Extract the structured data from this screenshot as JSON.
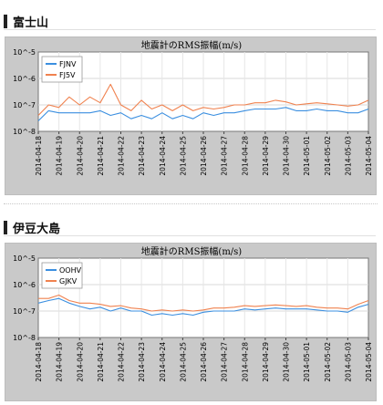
{
  "stations": [
    {
      "name": "富士山",
      "chart_data": {
        "type": "line",
        "title": "地震計のRMS振幅(m/s)",
        "xlabel": "",
        "ylabel": "",
        "yscale": "log",
        "ylim": [
          "10^-8",
          "10^-5"
        ],
        "ytick_labels": [
          "10^-5",
          "10^-6",
          "10^-7",
          "10^-8"
        ],
        "x_tick_labels": [
          "2014-04-18",
          "2014-04-19",
          "2014-04-20",
          "2014-04-21",
          "2014-04-22",
          "2014-04-23",
          "2014-04-24",
          "2014-04-25",
          "2014-04-26",
          "2014-04-27",
          "2014-04-28",
          "2014-04-29",
          "2014-04-30",
          "2014-05-01",
          "2014-05-02",
          "2014-05-03",
          "2014-05-04"
        ],
        "legend_position": "top-left",
        "grid": true,
        "series": [
          {
            "name": "FJNV",
            "color": "#3b8fe0",
            "values": [
              "2.5e-8",
              "6e-8",
              "5e-8",
              "5e-8",
              "5e-8",
              "5e-8",
              "6e-8",
              "4e-8",
              "5e-8",
              "3e-8",
              "4e-8",
              "3e-8",
              "5e-8",
              "3e-8",
              "4e-8",
              "3e-8",
              "5e-8",
              "4e-8",
              "5e-8",
              "5e-8",
              "6e-8",
              "7e-8",
              "7e-8",
              "7e-8",
              "8e-8",
              "6e-8",
              "6e-8",
              "7e-8",
              "6e-8",
              "6e-8",
              "5e-8",
              "5e-8",
              "7e-8"
            ]
          },
          {
            "name": "FJ5V",
            "color": "#f0824f",
            "values": [
              "4e-8",
              "1e-7",
              "8e-8",
              "2e-7",
              "1e-7",
              "2e-7",
              "1.2e-7",
              "6e-7",
              "1e-7",
              "6e-8",
              "1.5e-7",
              "7e-8",
              "1e-7",
              "6e-8",
              "1e-7",
              "6e-8",
              "8e-8",
              "7e-8",
              "8e-8",
              "1e-7",
              "1e-7",
              "1.2e-7",
              "1.2e-7",
              "1.5e-7",
              "1.3e-7",
              "1e-7",
              "1.1e-7",
              "1.2e-7",
              "1.1e-7",
              "1e-7",
              "9e-8",
              "1e-7",
              "1.5e-7"
            ]
          }
        ]
      }
    },
    {
      "name": "伊豆大島",
      "chart_data": {
        "type": "line",
        "title": "地震計のRMS振幅(m/s)",
        "xlabel": "",
        "ylabel": "",
        "yscale": "log",
        "ylim": [
          "10^-8",
          "10^-5"
        ],
        "ytick_labels": [
          "10^-5",
          "10^-6",
          "10^-7",
          "10^-8"
        ],
        "x_tick_labels": [
          "2014-04-18",
          "2014-04-19",
          "2014-04-20",
          "2014-04-21",
          "2014-04-22",
          "2014-04-23",
          "2014-04-24",
          "2014-04-25",
          "2014-04-26",
          "2014-04-27",
          "2014-04-28",
          "2014-04-29",
          "2014-04-30",
          "2014-05-01",
          "2014-05-02",
          "2014-05-03",
          "2014-05-04"
        ],
        "legend_position": "top-left",
        "grid": true,
        "series": [
          {
            "name": "OOHV",
            "color": "#3b8fe0",
            "values": [
              "2e-7",
              "2.5e-7",
              "3e-7",
              "2e-7",
              "1.5e-7",
              "1.2e-7",
              "1.4e-7",
              "1e-7",
              "1.3e-7",
              "1e-7",
              "1e-7",
              "7e-8",
              "8e-8",
              "7e-8",
              "8e-8",
              "7e-8",
              "9e-8",
              "1e-7",
              "1e-7",
              "1e-7",
              "1.2e-7",
              "1.1e-7",
              "1.2e-7",
              "1.3e-7",
              "1.2e-7",
              "1.2e-7",
              "1.2e-7",
              "1.1e-7",
              "1e-7",
              "1e-7",
              "9e-8",
              "1.4e-7",
              "1.8e-7"
            ]
          },
          {
            "name": "GJKV",
            "color": "#f0824f",
            "values": [
              "3e-7",
              "3e-7",
              "4e-7",
              "2.5e-7",
              "2e-7",
              "2e-7",
              "1.8e-7",
              "1.5e-7",
              "1.6e-7",
              "1.3e-7",
              "1.2e-7",
              "1e-7",
              "1.1e-7",
              "1e-7",
              "1.1e-7",
              "1e-7",
              "1.1e-7",
              "1.3e-7",
              "1.3e-7",
              "1.4e-7",
              "1.6e-7",
              "1.5e-7",
              "1.6e-7",
              "1.7e-7",
              "1.6e-7",
              "1.5e-7",
              "1.6e-7",
              "1.4e-7",
              "1.3e-7",
              "1.3e-7",
              "1.2e-7",
              "1.8e-7",
              "2.5e-7"
            ]
          }
        ]
      }
    }
  ]
}
